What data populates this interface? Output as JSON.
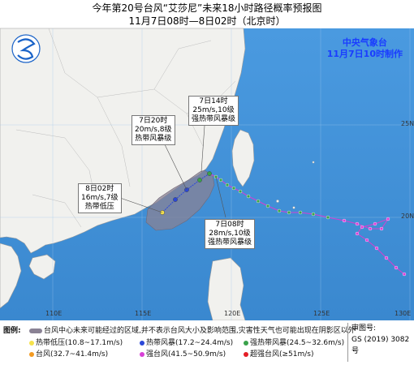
{
  "title": {
    "line1": "今年第20号台风“艾莎尼”未来18小时路径概率预报图",
    "line2": "11月7日08时—8日02时（北京时）"
  },
  "agency": {
    "name": "中央气象台",
    "issued": "11月7日10时制作"
  },
  "callouts": [
    {
      "l1": "7日14时",
      "l2": "25m/s,10级",
      "l3": "强热带风暴级"
    },
    {
      "l1": "7日20时",
      "l2": "20m/s,8级",
      "l3": "热带风暴级"
    },
    {
      "l1": "8日02时",
      "l2": "16m/s,7级",
      "l3": "热带低压"
    },
    {
      "l1": "7日08时",
      "l2": "28m/s,10级",
      "l3": "强热带风暴级"
    }
  ],
  "axes": {
    "lon_labels": [
      "110E",
      "115E",
      "120E",
      "125E",
      "130E"
    ],
    "lat_labels": [
      "25N",
      "20N"
    ]
  },
  "legend": {
    "heading": "图例:",
    "cone_text": "台风中心未来可能经过的区域,并不表示台风大小及影响范围,灾害性天气也可能出现在阴影区以外",
    "items": [
      {
        "label": "热带低压(10.8~17.1m/s)",
        "color": "#f6e24b"
      },
      {
        "label": "热带风暴(17.2~24.4m/s)",
        "color": "#2b48d8"
      },
      {
        "label": "强热带风暴(24.5~32.6m/s)",
        "color": "#3aa24b"
      },
      {
        "label": "台风(32.7~41.4m/s)",
        "color": "#f39a21"
      },
      {
        "label": "强台风(41.5~50.9m/s)",
        "color": "#d840d6"
      },
      {
        "label": "超强台风(≥51m/s)",
        "color": "#e41e26"
      }
    ]
  },
  "map_approval": {
    "label": "审图号:",
    "number": "GS (2019) 3082号"
  },
  "colors": {
    "ocean": "#3f91d8",
    "land": "#f1f1ee",
    "cone": "#8a8294",
    "past_track": "#d43fd2",
    "forecast_track": "#2b48d8"
  }
}
